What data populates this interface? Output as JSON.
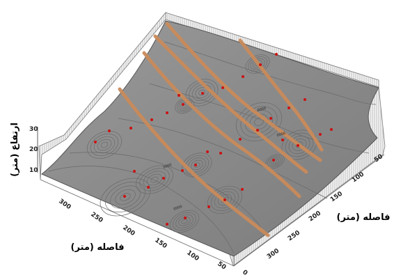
{
  "chart_data": {
    "type": "surface-3d",
    "z_label": "ارتفاع (متر)",
    "x_label": "فاصله (متر)",
    "y_label": "فاصله (متر)",
    "z_ticks": [
      "10",
      "20",
      "30"
    ],
    "x_ticks": [
      "300",
      "250",
      "200",
      "150",
      "100",
      "50",
      "0"
    ],
    "y_ticks": [
      "50",
      "100",
      "150",
      "200",
      "250",
      "300"
    ],
    "contour_labels": [
      "0000",
      "0000",
      "0000",
      "0000"
    ],
    "colors": {
      "surface": "#8e8e8e",
      "lines": "#c98a5a",
      "points": "#cc1111"
    }
  }
}
